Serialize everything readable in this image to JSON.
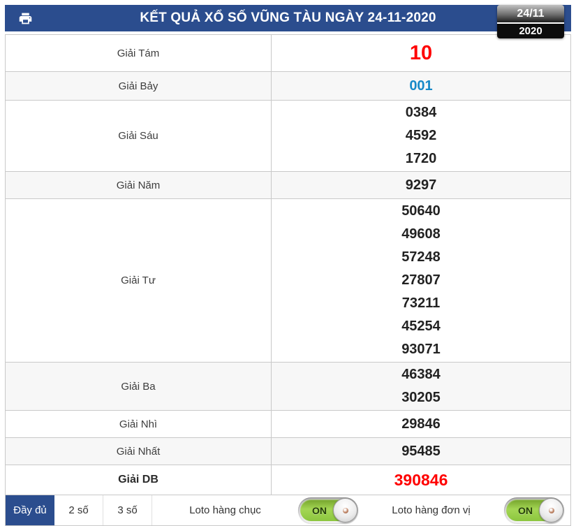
{
  "header": {
    "title": "KẾT QUẢ XỔ SỐ VŨNG TÀU NGÀY 24-11-2020",
    "date_badge": {
      "day_month": "24/11",
      "year": "2020"
    }
  },
  "results": {
    "rows": [
      {
        "label": "Giải Tám",
        "values": [
          "10"
        ],
        "style": "red-large"
      },
      {
        "label": "Giải Bảy",
        "values": [
          "001"
        ],
        "style": "blue"
      },
      {
        "label": "Giải Sáu",
        "values": [
          "0384",
          "4592",
          "1720"
        ],
        "style": "default"
      },
      {
        "label": "Giải Năm",
        "values": [
          "9297"
        ],
        "style": "default"
      },
      {
        "label": "Giải Tư",
        "values": [
          "50640",
          "49608",
          "57248",
          "27807",
          "73211",
          "45254",
          "93071"
        ],
        "style": "default"
      },
      {
        "label": "Giải Ba",
        "values": [
          "46384",
          "30205"
        ],
        "style": "default"
      },
      {
        "label": "Giải Nhì",
        "values": [
          "29846"
        ],
        "style": "default"
      },
      {
        "label": "Giải Nhất",
        "values": [
          "95485"
        ],
        "style": "default"
      },
      {
        "label": "Giải DB",
        "values": [
          "390846"
        ],
        "style": "red",
        "label_bold": true
      }
    ]
  },
  "footer": {
    "tabs": [
      {
        "label": "Đầy đủ",
        "active": true
      },
      {
        "label": "2 số",
        "active": false
      },
      {
        "label": "3 số",
        "active": false
      }
    ],
    "loto_toggles": [
      {
        "label": "Loto hàng chục",
        "state": "ON"
      },
      {
        "label": "Loto hàng đơn vị",
        "state": "ON"
      }
    ]
  },
  "colors": {
    "header_bg": "#2b4d8e",
    "special_red": "#ff0000",
    "seventh_prize_blue": "#1789c8",
    "toggle_green": "#8cc63f"
  }
}
